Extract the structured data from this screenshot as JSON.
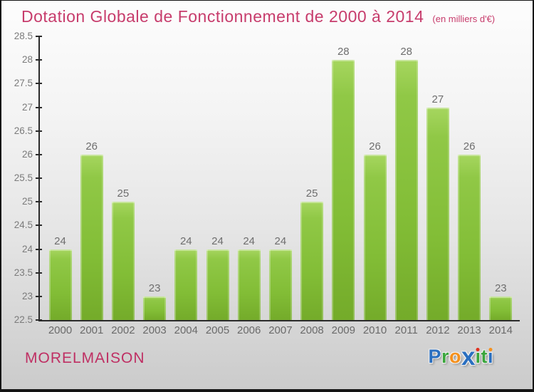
{
  "header": {
    "title": "Dotation Globale de Fonctionnement de 2000 à 2014",
    "subtitle": "(en milliers d'€)",
    "title_color": "#c73c6c"
  },
  "chart_data": {
    "type": "bar",
    "title": "Dotation Globale de Fonctionnement de 2000 à 2014",
    "subtitle": "(en milliers d'€)",
    "categories": [
      "2000",
      "2001",
      "2002",
      "2003",
      "2004",
      "2005",
      "2006",
      "2007",
      "2008",
      "2009",
      "2010",
      "2011",
      "2012",
      "2013",
      "2014"
    ],
    "values": [
      24,
      26,
      25,
      23,
      24,
      24,
      24,
      24,
      25,
      28,
      26,
      28,
      27,
      26,
      23
    ],
    "xlabel": "",
    "ylabel": "",
    "ylim": [
      22.5,
      28.5
    ],
    "y_ticks": [
      "22.5",
      "23",
      "23.5",
      "24",
      "24.5",
      "25",
      "25.5",
      "26",
      "26.5",
      "27",
      "27.5",
      "28",
      "28.5"
    ],
    "grid": false,
    "legend": null,
    "bar_color": "#8cc63e",
    "value_label_color": "#6e6e6e",
    "axis_color": "#2b2b2b",
    "tick_label_color": "#7b7b7b"
  },
  "footer": {
    "commune": "MORELMAISON",
    "commune_color": "#bf2f63",
    "logo_name": "proxiti-logo",
    "logo_letters": [
      {
        "ch": "P",
        "color": "#2a6fc0"
      },
      {
        "ch": "r",
        "color": "#3aa63c"
      },
      {
        "ch": "o",
        "color": "#f5911e"
      },
      {
        "ch": "x",
        "color": "#2a6fc0",
        "big": true
      },
      {
        "ch": "i",
        "color": "#3aa63c",
        "dot": "#e0301e"
      },
      {
        "ch": "t",
        "color": "#3aa63c"
      },
      {
        "ch": "i",
        "color": "#2a6fc0",
        "dot": "#f5911e"
      }
    ]
  }
}
